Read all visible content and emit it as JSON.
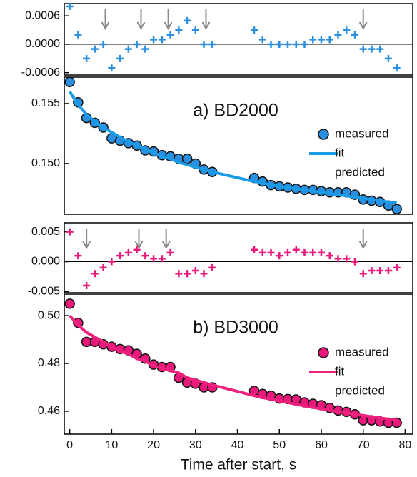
{
  "chart_data": [
    {
      "type": "scatter",
      "xlim": [
        -1.3,
        81.8
      ],
      "ylim": [
        -0.00065,
        0.00086
      ],
      "zero_line": true,
      "yticks": [
        0.0006,
        {
          "value": 0,
          "label": "0.0000"
        },
        -0.0006
      ],
      "x": [
        0,
        2,
        4,
        6,
        8,
        10,
        12,
        14,
        16,
        18,
        20,
        22,
        24,
        26,
        28,
        30,
        32,
        34,
        44,
        46,
        48,
        50,
        52,
        54,
        56,
        58,
        60,
        62,
        64,
        66,
        68,
        70,
        72,
        74,
        76,
        78
      ],
      "series": [
        {
          "mark": "plus",
          "color": "#2a8fe0",
          "values": [
            0.0008,
            0.0002,
            -0.0003,
            -0.0001,
            0,
            -0.0005,
            -0.0003,
            -0.0001,
            0,
            -0.0001,
            0.0001,
            0.0001,
            0.0002,
            0.0003,
            0.0005,
            0.0003,
            0,
            0,
            0.0003,
            0.0001,
            0,
            0,
            0,
            0,
            0,
            0.0001,
            0.0001,
            0.0001,
            0.0002,
            0.0003,
            0.0002,
            -0.0001,
            -0.0001,
            -0.0001,
            -0.0003,
            -0.0005
          ]
        }
      ],
      "arrows_x": [
        8.5,
        17,
        23.5,
        32.5,
        70
      ]
    },
    {
      "type": "scatter",
      "title": "a) BD2000",
      "xlim": [
        -1.3,
        81.8
      ],
      "ylim": [
        0.14577,
        0.1572
      ],
      "yticks": [
        0.155,
        {
          "value": 0.15,
          "label": "0.150"
        }
      ],
      "legend": "right",
      "x": [
        0,
        2,
        4,
        6,
        8,
        10,
        12,
        14,
        16,
        18,
        20,
        22,
        24,
        26,
        28,
        30,
        32,
        34,
        44,
        46,
        48,
        50,
        52,
        54,
        56,
        58,
        60,
        62,
        64,
        66,
        68,
        70,
        72,
        74,
        76,
        78
      ],
      "series": [
        {
          "name": "measured",
          "mark": "circle",
          "color": "#2a8fe0",
          "values": [
            0.1568,
            0.1551,
            0.1538,
            0.1534,
            0.153,
            0.1521,
            0.1519,
            0.1517,
            0.1515,
            0.1511,
            0.151,
            0.1507,
            0.1506,
            0.1504,
            0.1504,
            0.15,
            0.1495,
            0.1493,
            0.1488,
            0.1485,
            0.1482,
            0.1481,
            0.148,
            0.1479,
            0.1478,
            0.1478,
            0.1477,
            0.1476,
            0.1476,
            0.1476,
            0.1474,
            0.147,
            0.1469,
            0.1468,
            0.1465,
            0.1462
          ]
        },
        {
          "name": "fit",
          "mark": "line",
          "color": "#1a9be8",
          "values": [
            0.156,
            0.1549,
            0.1541,
            0.1535,
            0.153,
            0.1526,
            0.1522,
            0.1518,
            0.1515,
            0.1512,
            0.1509,
            0.1506,
            0.1504,
            0.1501,
            0.1499,
            0.1497,
            0.1495,
            0.1493,
            0.1485,
            0.1484,
            0.1482,
            0.1481,
            0.148,
            0.1479,
            0.1478,
            0.1477,
            0.1476,
            0.1475,
            0.1474,
            0.1473,
            0.1472,
            0.1471,
            0.147,
            0.1469,
            0.1468,
            0.1467
          ]
        },
        {
          "name": "predicted",
          "mark": "none",
          "color": "#1a9be8",
          "values": [
            null,
            null,
            null,
            null,
            null,
            null,
            null,
            null,
            null,
            null,
            null,
            null,
            null,
            null,
            null,
            null,
            null,
            null,
            null,
            null,
            null,
            null,
            null,
            null,
            null,
            null,
            null,
            null,
            null,
            null,
            null,
            null,
            null,
            null,
            null,
            null
          ]
        }
      ]
    },
    {
      "type": "scatter",
      "xlim": [
        -1.3,
        81.8
      ],
      "ylim": [
        -0.0052,
        0.0065
      ],
      "zero_line": true,
      "yticks": [
        0.005,
        {
          "value": 0,
          "label": "0.000"
        },
        -0.005
      ],
      "x": [
        0,
        2,
        4,
        6,
        8,
        10,
        12,
        14,
        16,
        18,
        20,
        22,
        24,
        26,
        28,
        30,
        32,
        34,
        44,
        46,
        48,
        50,
        52,
        54,
        56,
        58,
        60,
        62,
        64,
        66,
        68,
        70,
        72,
        74,
        76,
        78
      ],
      "series": [
        {
          "mark": "plus",
          "color": "#e8197a",
          "values": [
            0.005,
            0.001,
            -0.004,
            -0.002,
            -0.001,
            0,
            0.001,
            0.0015,
            0.002,
            0.001,
            0.0005,
            0.0005,
            0.0015,
            -0.002,
            -0.002,
            -0.0015,
            -0.002,
            -0.001,
            0.002,
            0.0015,
            0.0015,
            0.001,
            0.0015,
            0.002,
            0.0015,
            0.0015,
            0.0015,
            0.001,
            0.0005,
            0.0005,
            0,
            -0.002,
            -0.0015,
            -0.0015,
            -0.0015,
            -0.001
          ]
        }
      ],
      "arrows_x": [
        4,
        16.5,
        23,
        70
      ]
    },
    {
      "type": "scatter",
      "title": "b) BD3000",
      "xlim": [
        -1.3,
        81.8
      ],
      "ylim": [
        0.4504,
        0.509
      ],
      "yticks": [
        {
          "value": 0.5,
          "label": "0.50"
        },
        0.48,
        0.46
      ],
      "legend": "right",
      "xticks": [
        0,
        10,
        20,
        30,
        40,
        50,
        60,
        70,
        80
      ],
      "xlabel": "Time after start, s",
      "x": [
        0,
        2,
        4,
        6,
        8,
        10,
        12,
        14,
        16,
        18,
        20,
        22,
        24,
        26,
        28,
        30,
        32,
        34,
        44,
        46,
        48,
        50,
        52,
        54,
        56,
        58,
        60,
        62,
        64,
        66,
        68,
        70,
        72,
        74,
        76,
        78
      ],
      "series": [
        {
          "name": "measured",
          "mark": "circle",
          "color": "#e8197a",
          "values": [
            0.505,
            0.497,
            0.489,
            0.489,
            0.488,
            0.487,
            0.486,
            0.4855,
            0.484,
            0.482,
            0.4795,
            0.4785,
            0.4785,
            0.474,
            0.472,
            0.4715,
            0.47,
            0.47,
            0.4685,
            0.4672,
            0.4665,
            0.4653,
            0.4651,
            0.4649,
            0.4637,
            0.4631,
            0.4625,
            0.4614,
            0.4603,
            0.4597,
            0.4587,
            0.4562,
            0.4562,
            0.4557,
            0.4552,
            0.4552
          ]
        },
        {
          "name": "fit",
          "mark": "line",
          "color": "#f0207f",
          "values": [
            0.5,
            0.496,
            0.493,
            0.491,
            0.489,
            0.487,
            0.485,
            0.484,
            0.482,
            0.481,
            0.479,
            0.478,
            0.477,
            0.476,
            0.474,
            0.473,
            0.472,
            0.471,
            0.4665,
            0.4657,
            0.465,
            0.4643,
            0.4636,
            0.4629,
            0.4622,
            0.4616,
            0.461,
            0.4604,
            0.4598,
            0.4592,
            0.4587,
            0.4582,
            0.4577,
            0.4572,
            0.4567,
            0.4562
          ]
        },
        {
          "name": "predicted",
          "mark": "none",
          "color": "#f0207f",
          "values": [
            null,
            null,
            null,
            null,
            null,
            null,
            null,
            null,
            null,
            null,
            null,
            null,
            null,
            null,
            null,
            null,
            null,
            null,
            null,
            null,
            null,
            null,
            null,
            null,
            null,
            null,
            null,
            null,
            null,
            null,
            null,
            null,
            null,
            null,
            null,
            null
          ]
        }
      ]
    }
  ]
}
